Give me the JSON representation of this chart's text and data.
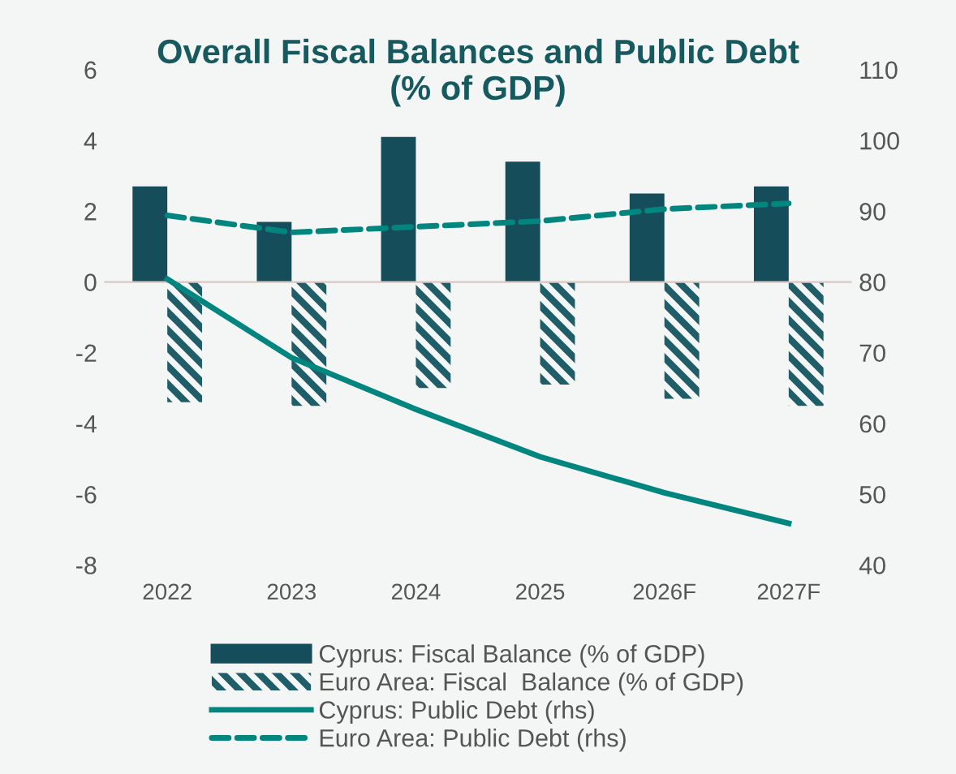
{
  "chart_data": {
    "type": "bar",
    "title": "Overall Fiscal Balances and Public Debt\n(% of GDP)",
    "categories": [
      "2022",
      "2023",
      "2024",
      "2025",
      "2026F",
      "2027F"
    ],
    "series": [
      {
        "name": "Cyprus: Fiscal Balance (% of GDP)",
        "color": "#164d5a",
        "values": [
          2.7,
          1.7,
          4.1,
          3.4,
          2.5,
          2.7
        ]
      },
      {
        "name": "Euro Area: Fiscal  Balance (% of GDP)",
        "color": "#1f5d68",
        "values": [
          -3.4,
          -3.5,
          -3.0,
          -2.9,
          -3.3,
          -3.5
        ]
      },
      {
        "name": "Cyprus: Public Debt (rhs)",
        "type": "line",
        "axis": "y2",
        "color": "#00857f",
        "line_style": "solid",
        "values": [
          80.4,
          69.3,
          62.0,
          55.3,
          50.2,
          45.9
        ]
      },
      {
        "name": "Euro Area: Public Debt (rhs)",
        "type": "line",
        "axis": "y2",
        "color": "#00857f",
        "line_style": "dashed",
        "values": [
          89.4,
          87.0,
          87.8,
          88.6,
          90.3,
          91.1
        ]
      }
    ],
    "ylim": [
      -8,
      6
    ],
    "yticks": [
      -8,
      -6,
      -4,
      -2,
      0,
      2,
      4,
      6
    ],
    "y2lim": [
      40,
      110
    ],
    "y2ticks": [
      40,
      50,
      60,
      70,
      80,
      90,
      100,
      110
    ],
    "legend": "bottom",
    "marker": "none"
  }
}
